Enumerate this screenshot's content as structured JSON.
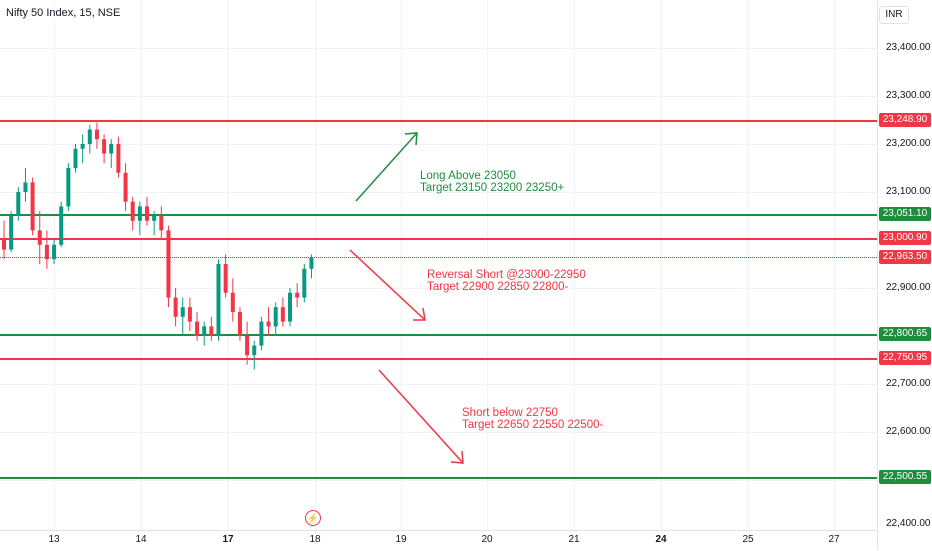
{
  "header": {
    "symbol_title": "Nifty 50 Index, 15, NSE"
  },
  "price_axis": {
    "currency": "INR",
    "ticks": [
      "23,400.00",
      "23,300.00",
      "23,200.00",
      "23,100.00",
      "22,900.00",
      "22,700.00",
      "22,600.00",
      "22,400.00"
    ],
    "levels": [
      {
        "value": "23,248.90",
        "color": "#f23645"
      },
      {
        "value": "23,051.10",
        "color": "#1e8e3e"
      },
      {
        "value": "23,000.90",
        "color": "#f23645"
      },
      {
        "value": "22,963.50",
        "color": "#f23645"
      },
      {
        "value": "22,800.65",
        "color": "#1e8e3e"
      },
      {
        "value": "22,750.95",
        "color": "#f23645"
      },
      {
        "value": "22,500.55",
        "color": "#1e8e3e"
      }
    ]
  },
  "time_axis": {
    "ticks": [
      "13",
      "14",
      "17",
      "18",
      "19",
      "20",
      "21",
      "24",
      "25",
      "27"
    ]
  },
  "annotations": {
    "long": {
      "line1": "Long Above 23050",
      "line2": "Target 23150 23200 23250+",
      "color": "#1e8e3e"
    },
    "reversal": {
      "line1": "Reversal Short @23000-22950",
      "line2": "Target 22900 22850 22800-",
      "color": "#f23645"
    },
    "short": {
      "line1": "Short below 22750",
      "line2": "Target 22650 22550 22500-",
      "color": "#f23645"
    }
  },
  "colors": {
    "up": "#089981",
    "down": "#f23645",
    "green_level": "#1e8e3e",
    "red_level": "#f23645"
  },
  "icons": {
    "flash": "lightning-icon"
  },
  "chart_data": {
    "type": "candlestick",
    "title": "Nifty 50 Index, 15, NSE",
    "ylim": [
      22400,
      23450
    ],
    "horizontal_levels": [
      23248.9,
      23051.1,
      23000.9,
      22800.65,
      22750.95,
      22500.55
    ],
    "last_price": 22963.5,
    "candles": [
      [
        23000,
        23040,
        22960,
        22980
      ],
      [
        22980,
        23060,
        22975,
        23050
      ],
      [
        23050,
        23110,
        23040,
        23100
      ],
      [
        23100,
        23150,
        23080,
        23120
      ],
      [
        23120,
        23130,
        23010,
        23020
      ],
      [
        23020,
        23060,
        22950,
        22990
      ],
      [
        22990,
        23020,
        22940,
        22960
      ],
      [
        22960,
        23000,
        22950,
        22990
      ],
      [
        22990,
        23080,
        22985,
        23070
      ],
      [
        23070,
        23160,
        23060,
        23150
      ],
      [
        23150,
        23200,
        23140,
        23190
      ],
      [
        23190,
        23220,
        23160,
        23200
      ],
      [
        23200,
        23240,
        23180,
        23230
      ],
      [
        23230,
        23245,
        23190,
        23210
      ],
      [
        23210,
        23220,
        23160,
        23180
      ],
      [
        23180,
        23210,
        23150,
        23200
      ],
      [
        23200,
        23215,
        23130,
        23140
      ],
      [
        23140,
        23160,
        23060,
        23080
      ],
      [
        23080,
        23090,
        23020,
        23040
      ],
      [
        23040,
        23080,
        23010,
        23070
      ],
      [
        23070,
        23090,
        23030,
        23040
      ],
      [
        23040,
        23060,
        23010,
        23050
      ],
      [
        23050,
        23070,
        23000,
        23020
      ],
      [
        23020,
        23030,
        22860,
        22880
      ],
      [
        22880,
        22900,
        22820,
        22840
      ],
      [
        22840,
        22880,
        22800,
        22860
      ],
      [
        22860,
        22880,
        22810,
        22830
      ],
      [
        22830,
        22850,
        22790,
        22800
      ],
      [
        22800,
        22830,
        22780,
        22820
      ],
      [
        22820,
        22840,
        22790,
        22800
      ],
      [
        22800,
        22960,
        22790,
        22950
      ],
      [
        22950,
        22970,
        22880,
        22890
      ],
      [
        22890,
        22920,
        22830,
        22850
      ],
      [
        22850,
        22860,
        22790,
        22800
      ],
      [
        22800,
        22830,
        22740,
        22760
      ],
      [
        22760,
        22790,
        22730,
        22780
      ],
      [
        22780,
        22840,
        22770,
        22830
      ],
      [
        22830,
        22860,
        22800,
        22820
      ],
      [
        22820,
        22870,
        22800,
        22860
      ],
      [
        22860,
        22880,
        22820,
        22830
      ],
      [
        22830,
        22900,
        22820,
        22890
      ],
      [
        22890,
        22910,
        22860,
        22880
      ],
      [
        22880,
        22950,
        22870,
        22940
      ],
      [
        22940,
        22970,
        22920,
        22963.5
      ]
    ]
  }
}
